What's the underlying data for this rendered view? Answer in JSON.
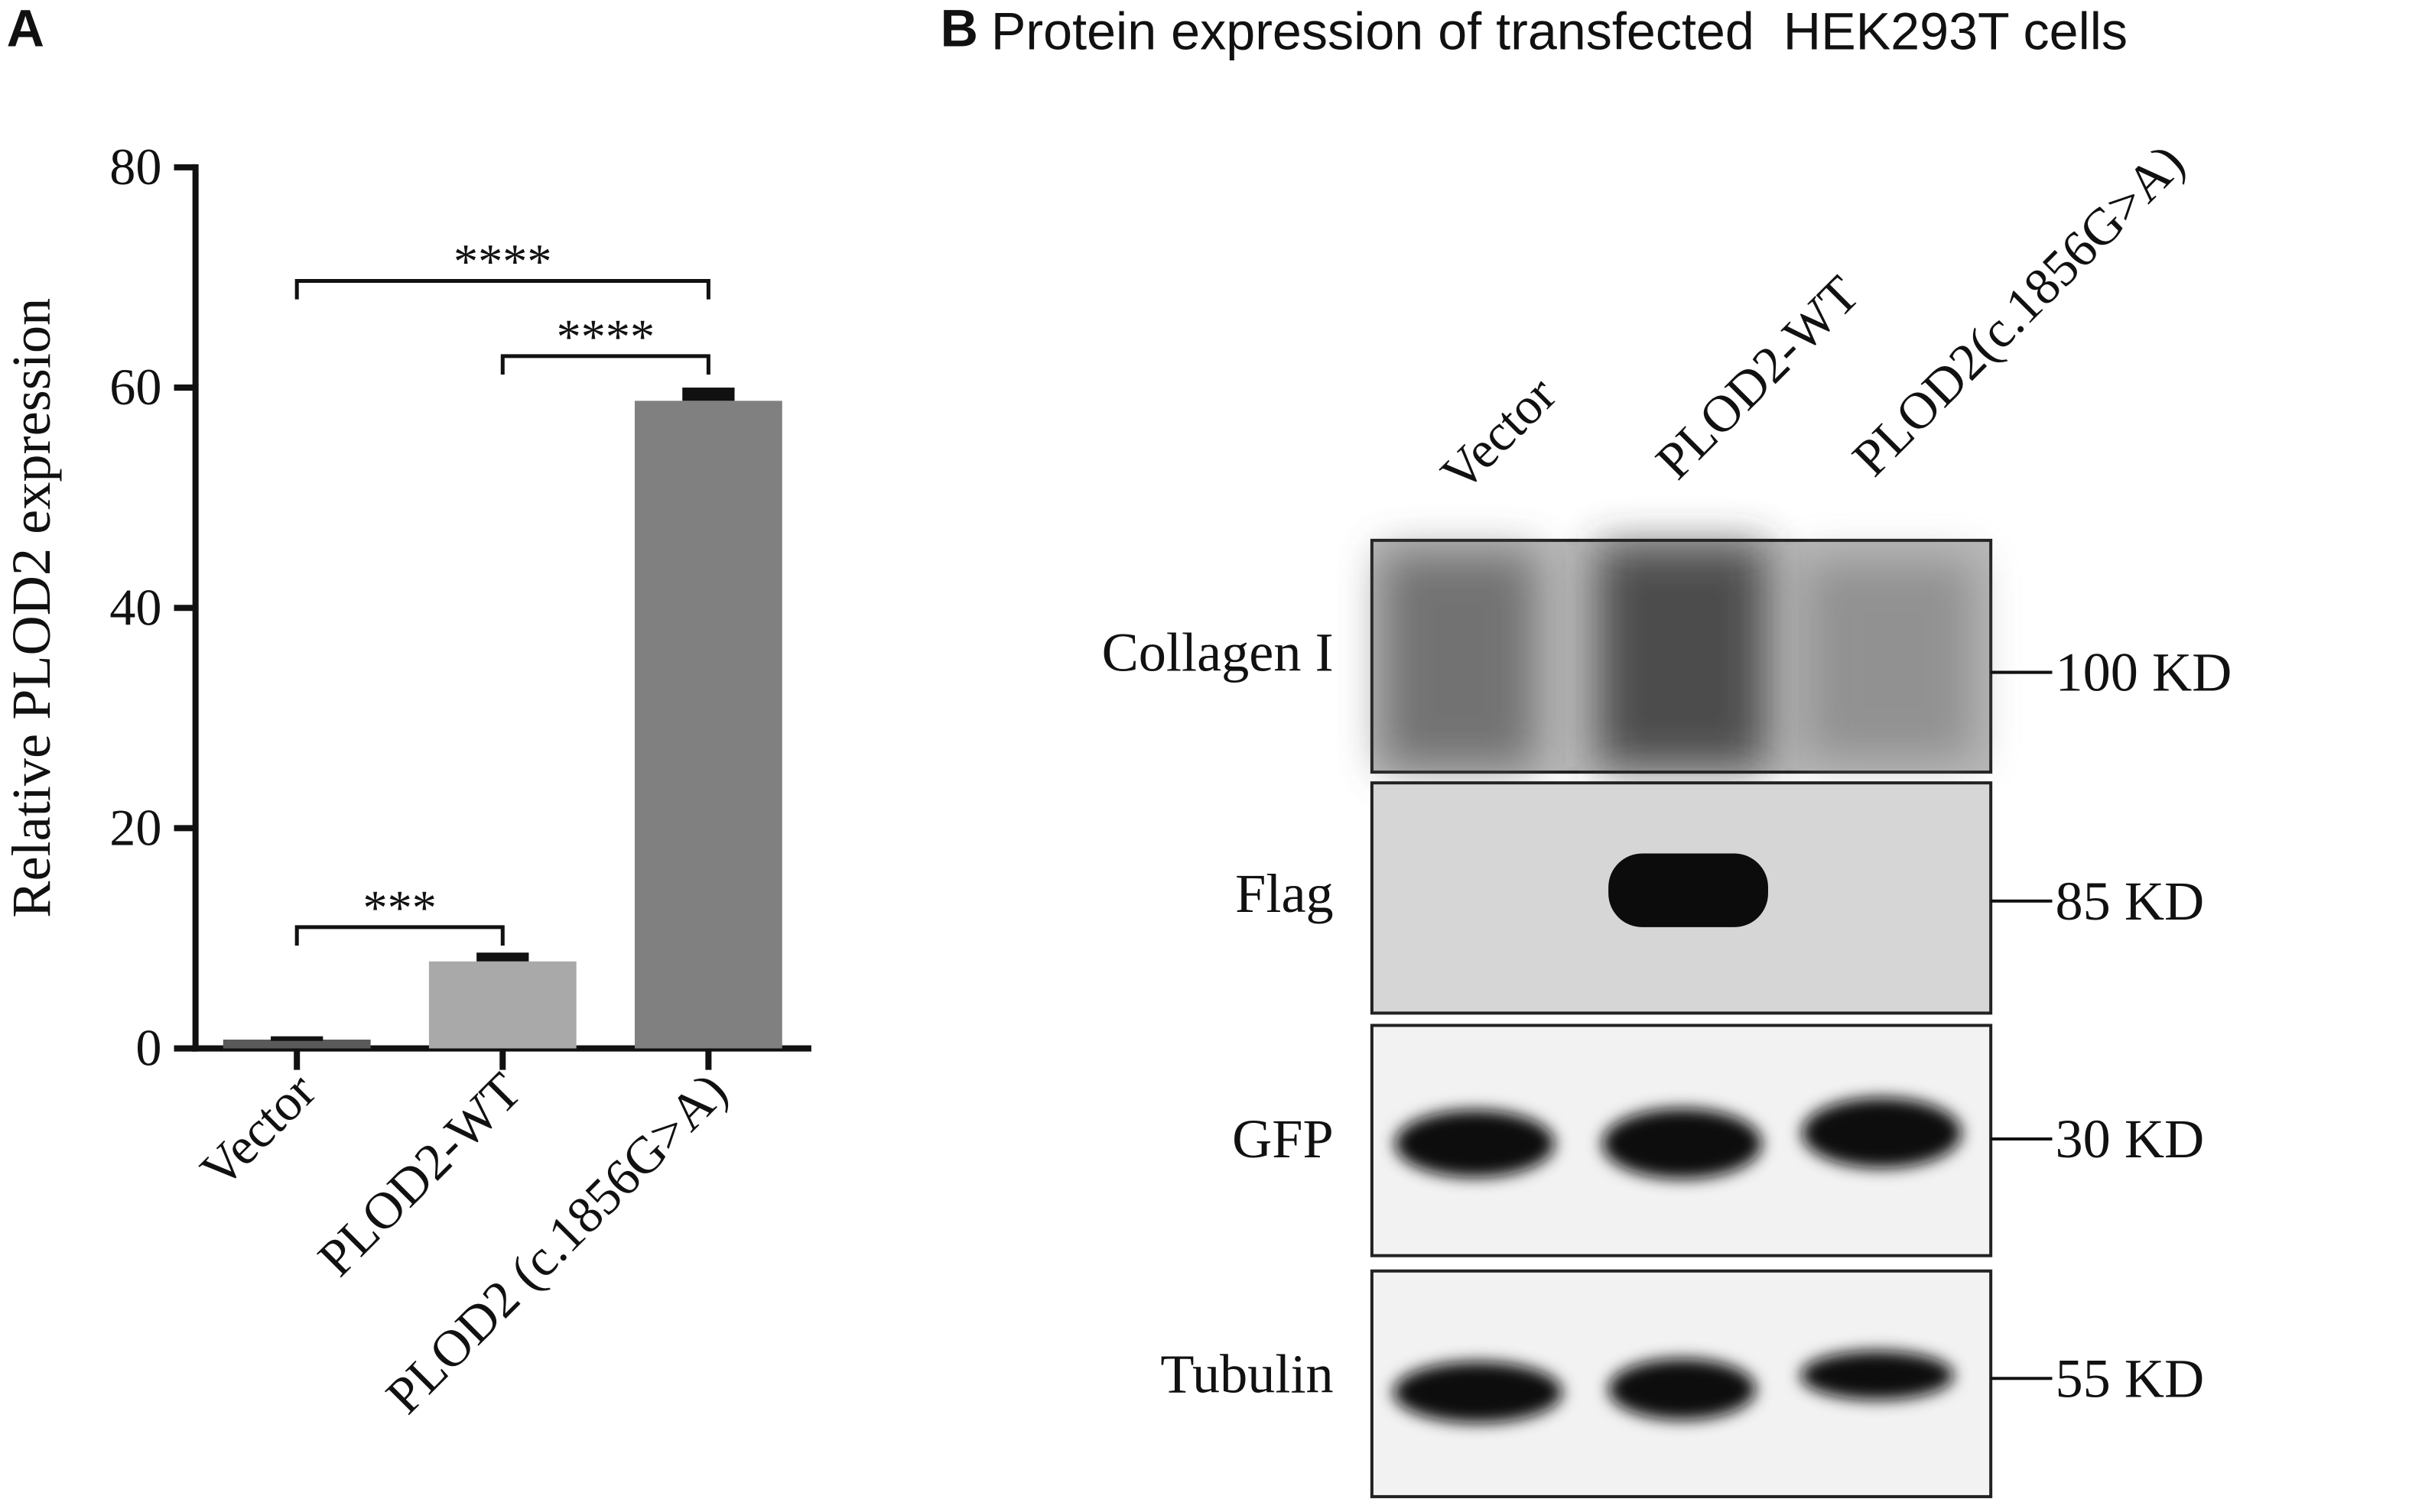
{
  "chart_data": {
    "type": "bar",
    "panel_label": "A",
    "ylabel": "Relative PLOD2 expression",
    "categories": [
      "Vector",
      "PLOD2-WT",
      "PLOD2 (c.1856G>A)"
    ],
    "values": [
      0.8,
      7.9,
      58.8
    ],
    "errors": [
      0.3,
      0.8,
      1.2
    ],
    "colors": [
      "#5a5a5a",
      "#a9a9a9",
      "#808080"
    ],
    "ylim": [
      0,
      80
    ],
    "yticks": [
      0,
      20,
      40,
      60,
      80
    ],
    "annotations": [
      {
        "text": "****"
      },
      {
        "text": "****"
      },
      {
        "text": "***"
      }
    ]
  },
  "blot": {
    "panel_label": "B",
    "title": "Protein expression of transfected  HEK293T cells",
    "lanes": [
      "Vector",
      "PLOD2-WT",
      "PLOD2(c.1856G>A)"
    ],
    "rows": [
      {
        "label": "Collagen I",
        "size": "100 KD"
      },
      {
        "label": "Flag",
        "size": "85 KD"
      },
      {
        "label": "GFP",
        "size": "30 KD"
      },
      {
        "label": "Tubulin",
        "size": "55 KD"
      }
    ]
  }
}
